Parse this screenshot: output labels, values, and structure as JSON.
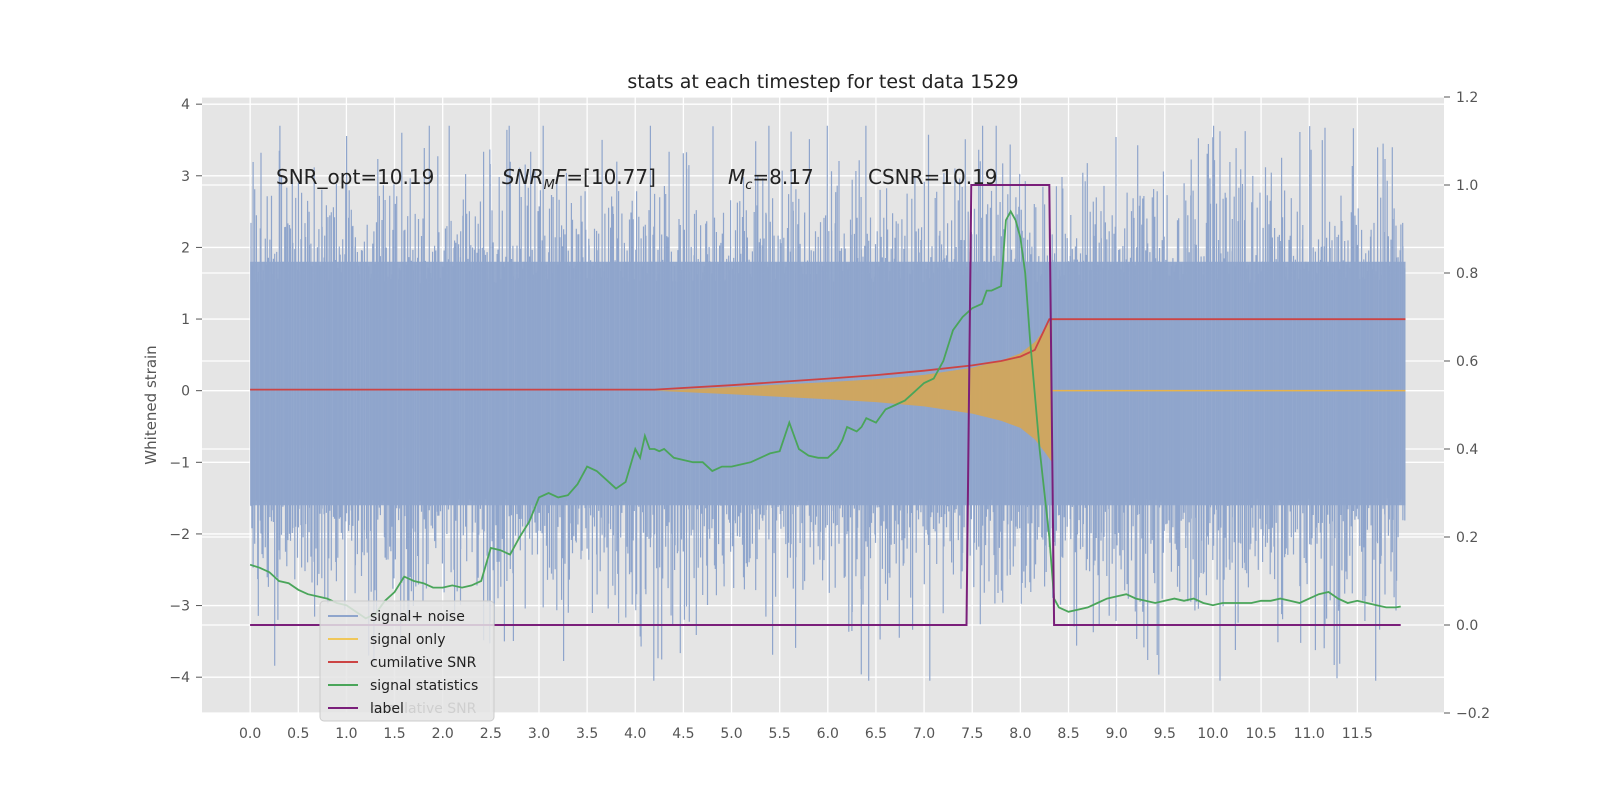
{
  "chart_data": {
    "type": "line",
    "title": "stats at each timestep for test data 1529",
    "xlabel": "",
    "ylabel": "Whitened strain",
    "y2label": "",
    "xlim": [
      -0.5,
      12.4
    ],
    "ylim": [
      -4.5,
      4.1
    ],
    "y2lim": [
      -0.2,
      1.2
    ],
    "grid": true,
    "style": "ggplot",
    "legend_position": "lower-left",
    "x_ticks": [
      0.0,
      0.5,
      1.0,
      1.5,
      2.0,
      2.5,
      3.0,
      3.5,
      4.0,
      4.5,
      5.0,
      5.5,
      6.0,
      6.5,
      7.0,
      7.5,
      8.0,
      8.5,
      9.0,
      9.5,
      10.0,
      10.5,
      11.0,
      11.5
    ],
    "x_tick_labels": [
      "0.0",
      "0.5",
      "1.0",
      "1.5",
      "2.0",
      "2.5",
      "3.0",
      "3.5",
      "4.0",
      "4.5",
      "5.0",
      "5.5",
      "6.0",
      "6.5",
      "7.0",
      "7.5",
      "8.0",
      "8.5",
      "9.0",
      "9.5",
      "10.0",
      "10.5",
      "11.0",
      "11.5"
    ],
    "y_ticks": [
      4,
      3,
      2,
      1,
      0,
      -1,
      -2,
      -3,
      -4
    ],
    "y_tick_labels": [
      "4",
      "3",
      "2",
      "1",
      "0",
      "−1",
      "−2",
      "−3",
      "−4"
    ],
    "y2_ticks": [
      1.2,
      1.0,
      0.8,
      0.6,
      0.4,
      0.2,
      0.0,
      -0.2
    ],
    "y2_tick_labels": [
      "1.2",
      "1.0",
      "0.8",
      "0.6",
      "0.4",
      "0.2",
      "0.0",
      "−0.2"
    ],
    "annotations": [
      {
        "text": "SNR_opt=10.19",
        "x": 0.2,
        "y": 2.8
      },
      {
        "text": "SNR_M F=[10.77]",
        "x": 2.6,
        "y": 2.8
      },
      {
        "text": "M_c=8.17",
        "x": 5.0,
        "y": 2.8
      },
      {
        "text": "CSNR=10.19",
        "x": 6.5,
        "y": 2.8
      }
    ],
    "series": [
      {
        "name": "signal+ noise",
        "axis": "left",
        "color": "#8fa5cc",
        "kind": "noise_band",
        "x_range": [
          0.0,
          12.0
        ],
        "typical_range": [
          -1.6,
          1.8
        ],
        "peak_range": [
          -4.05,
          3.7
        ]
      },
      {
        "name": "signal only",
        "axis": "left",
        "color": "#e8b44a",
        "kind": "chirp_envelope",
        "x": [
          4.2,
          5.0,
          6.0,
          6.5,
          7.0,
          7.5,
          7.8,
          8.0,
          8.15,
          8.25,
          8.33
        ],
        "envelope": [
          0.0,
          0.05,
          0.12,
          0.16,
          0.22,
          0.32,
          0.42,
          0.52,
          0.68,
          0.85,
          1.0
        ]
      },
      {
        "name": "cumilative SNR",
        "axis": "right",
        "color": "#cc4444",
        "x": [
          0.0,
          4.2,
          5.0,
          6.0,
          6.5,
          7.0,
          7.5,
          7.8,
          8.0,
          8.15,
          8.3,
          12.0
        ],
        "values": [
          0.535,
          0.535,
          0.545,
          0.56,
          0.568,
          0.578,
          0.59,
          0.6,
          0.61,
          0.625,
          0.695,
          0.695
        ]
      },
      {
        "name": "signal statistics",
        "axis": "right",
        "color": "#4aa55a",
        "x": [
          0.0,
          0.1,
          0.2,
          0.3,
          0.4,
          0.5,
          0.6,
          0.7,
          0.8,
          0.9,
          1.0,
          1.1,
          1.2,
          1.3,
          1.4,
          1.5,
          1.6,
          1.7,
          1.8,
          1.9,
          2.0,
          2.1,
          2.2,
          2.3,
          2.4,
          2.5,
          2.6,
          2.7,
          2.8,
          2.9,
          3.0,
          3.1,
          3.2,
          3.3,
          3.4,
          3.5,
          3.6,
          3.7,
          3.8,
          3.9,
          4.0,
          4.05,
          4.1,
          4.15,
          4.2,
          4.25,
          4.3,
          4.4,
          4.5,
          4.6,
          4.7,
          4.8,
          4.9,
          5.0,
          5.1,
          5.2,
          5.3,
          5.4,
          5.5,
          5.6,
          5.7,
          5.8,
          5.9,
          6.0,
          6.1,
          6.15,
          6.2,
          6.3,
          6.35,
          6.4,
          6.5,
          6.6,
          6.7,
          6.8,
          6.9,
          7.0,
          7.1,
          7.2,
          7.3,
          7.4,
          7.5,
          7.6,
          7.65,
          7.7,
          7.8,
          7.85,
          7.9,
          7.95,
          8.0,
          8.05,
          8.1,
          8.2,
          8.3,
          8.35,
          8.4,
          8.5,
          8.6,
          8.7,
          8.8,
          8.9,
          9.0,
          9.1,
          9.2,
          9.3,
          9.4,
          9.5,
          9.6,
          9.7,
          9.8,
          9.9,
          10.0,
          10.1,
          10.2,
          10.3,
          10.4,
          10.5,
          10.6,
          10.7,
          10.8,
          10.9,
          11.0,
          11.1,
          11.2,
          11.3,
          11.4,
          11.5,
          11.6,
          11.7,
          11.8,
          11.9,
          11.95
        ],
        "values": [
          0.137,
          0.13,
          0.12,
          0.1,
          0.095,
          0.08,
          0.07,
          0.065,
          0.06,
          0.05,
          0.045,
          0.03,
          0.015,
          0.025,
          0.055,
          0.075,
          0.11,
          0.1,
          0.095,
          0.085,
          0.085,
          0.09,
          0.085,
          0.09,
          0.1,
          0.175,
          0.17,
          0.16,
          0.2,
          0.235,
          0.29,
          0.3,
          0.29,
          0.295,
          0.32,
          0.36,
          0.35,
          0.33,
          0.31,
          0.325,
          0.4,
          0.38,
          0.43,
          0.4,
          0.4,
          0.395,
          0.4,
          0.38,
          0.375,
          0.37,
          0.37,
          0.35,
          0.36,
          0.36,
          0.365,
          0.37,
          0.38,
          0.39,
          0.395,
          0.46,
          0.4,
          0.385,
          0.38,
          0.38,
          0.4,
          0.42,
          0.45,
          0.44,
          0.45,
          0.47,
          0.46,
          0.49,
          0.5,
          0.51,
          0.53,
          0.55,
          0.56,
          0.6,
          0.67,
          0.7,
          0.72,
          0.73,
          0.76,
          0.76,
          0.77,
          0.92,
          0.94,
          0.92,
          0.88,
          0.8,
          0.65,
          0.4,
          0.2,
          0.06,
          0.04,
          0.03,
          0.035,
          0.04,
          0.05,
          0.06,
          0.065,
          0.07,
          0.06,
          0.055,
          0.05,
          0.055,
          0.06,
          0.055,
          0.06,
          0.05,
          0.045,
          0.05,
          0.05,
          0.05,
          0.05,
          0.055,
          0.055,
          0.06,
          0.055,
          0.05,
          0.06,
          0.07,
          0.075,
          0.06,
          0.05,
          0.055,
          0.05,
          0.045,
          0.04,
          0.04,
          0.042
        ]
      },
      {
        "name": "label",
        "axis": "right",
        "color": "#7a1f7a",
        "x": [
          0.0,
          7.44,
          7.49,
          8.3,
          8.35,
          11.95
        ],
        "values": [
          0.0,
          0.0,
          1.0,
          1.0,
          0.0,
          0.0
        ]
      }
    ],
    "legend": [
      "signal+ noise",
      "signal only",
      "cumilative SNR",
      "signal statistics",
      "label"
    ],
    "legend_overlap_text": "cumilative SNR"
  }
}
